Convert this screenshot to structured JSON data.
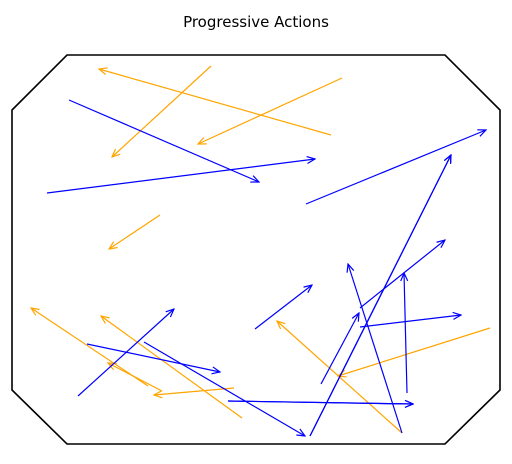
{
  "title": "Progressive Actions",
  "colors": {
    "blue": "#0000ff",
    "orange": "#ffa500",
    "outline": "#000000"
  },
  "shape": "octagon",
  "arrows": [
    {
      "id": 1,
      "color": "orange"
    },
    {
      "id": 2,
      "color": "orange"
    },
    {
      "id": 3,
      "color": "orange"
    },
    {
      "id": 4,
      "color": "blue"
    },
    {
      "id": 5,
      "color": "blue"
    },
    {
      "id": 6,
      "color": "blue"
    },
    {
      "id": 7,
      "color": "orange"
    },
    {
      "id": 8,
      "color": "orange"
    },
    {
      "id": 9,
      "color": "orange"
    },
    {
      "id": 10,
      "color": "orange"
    },
    {
      "id": 11,
      "color": "orange"
    },
    {
      "id": 12,
      "color": "orange"
    },
    {
      "id": 13,
      "color": "orange"
    },
    {
      "id": 14,
      "color": "blue"
    },
    {
      "id": 15,
      "color": "blue"
    },
    {
      "id": 16,
      "color": "blue"
    },
    {
      "id": 17,
      "color": "blue"
    },
    {
      "id": 18,
      "color": "blue"
    },
    {
      "id": 19,
      "color": "blue"
    },
    {
      "id": 20,
      "color": "blue"
    },
    {
      "id": 21,
      "color": "blue"
    },
    {
      "id": 22,
      "color": "blue"
    },
    {
      "id": 23,
      "color": "blue"
    },
    {
      "id": 24,
      "color": "blue"
    },
    {
      "id": 25,
      "color": "blue"
    },
    {
      "id": 26,
      "color": "blue"
    }
  ]
}
